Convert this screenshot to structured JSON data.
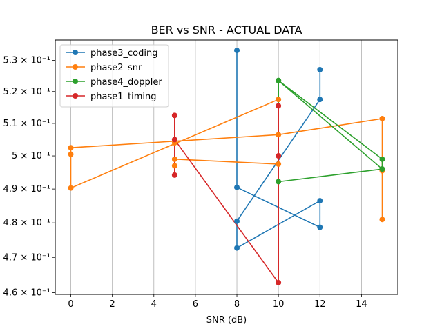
{
  "chart_data": {
    "type": "line",
    "title": "BER vs SNR - ACTUAL DATA",
    "xlabel": "SNR (dB)",
    "ylabel": "",
    "xlim": [
      -0.75,
      15.75
    ],
    "ylim": [
      0.4595,
      0.5366
    ],
    "yscale": "log",
    "grid": "x",
    "legend_position": "top-left",
    "xticks": [
      0,
      2,
      4,
      6,
      8,
      10,
      12,
      14
    ],
    "yticks": [
      {
        "value": 0.46,
        "label": "4.6 × 10⁻¹"
      },
      {
        "value": 0.47,
        "label": "4.7 × 10⁻¹"
      },
      {
        "value": 0.48,
        "label": "4.8 × 10⁻¹"
      },
      {
        "value": 0.49,
        "label": "4.9 × 10⁻¹"
      },
      {
        "value": 0.5,
        "label": "5 × 10⁻¹"
      },
      {
        "value": 0.51,
        "label": "5.1 × 10⁻¹"
      },
      {
        "value": 0.52,
        "label": "5.2 × 10⁻¹"
      },
      {
        "value": 0.53,
        "label": "5.3 × 10⁻¹"
      }
    ],
    "series": [
      {
        "name": "phase3_coding",
        "color": "#1f77b4",
        "points": [
          [
            8,
            0.5332
          ],
          [
            8,
            0.4905
          ],
          [
            12,
            0.4787
          ],
          [
            12,
            0.4865
          ],
          [
            8,
            0.4727
          ],
          [
            8,
            0.4805
          ],
          [
            12,
            0.5175
          ],
          [
            12,
            0.527
          ]
        ]
      },
      {
        "name": "phase2_snr",
        "color": "#ff7f0e",
        "points": [
          [
            15,
            0.4955
          ],
          [
            15,
            0.481
          ],
          [
            15,
            0.5115
          ],
          [
            10,
            0.5065
          ],
          [
            0,
            0.5025
          ],
          [
            0,
            0.5005
          ],
          [
            0,
            0.4903
          ],
          [
            10,
            0.5175
          ],
          [
            10,
            0.4975
          ],
          [
            5,
            0.499
          ],
          [
            5,
            0.497
          ],
          [
            5,
            0.504
          ]
        ]
      },
      {
        "name": "phase4_doppler",
        "color": "#2ca02c",
        "points": [
          [
            15,
            0.496
          ],
          [
            10,
            0.5235
          ],
          [
            10,
            0.4922
          ],
          [
            15,
            0.496
          ],
          [
            15,
            0.499
          ],
          [
            10,
            0.5235
          ]
        ]
      },
      {
        "name": "phase1_timing",
        "color": "#d62728",
        "points": [
          [
            5,
            0.5125
          ],
          [
            5,
            0.4942
          ],
          [
            5,
            0.505
          ],
          [
            10,
            0.4628
          ],
          [
            10,
            0.5
          ],
          [
            10,
            0.5155
          ]
        ]
      }
    ]
  }
}
